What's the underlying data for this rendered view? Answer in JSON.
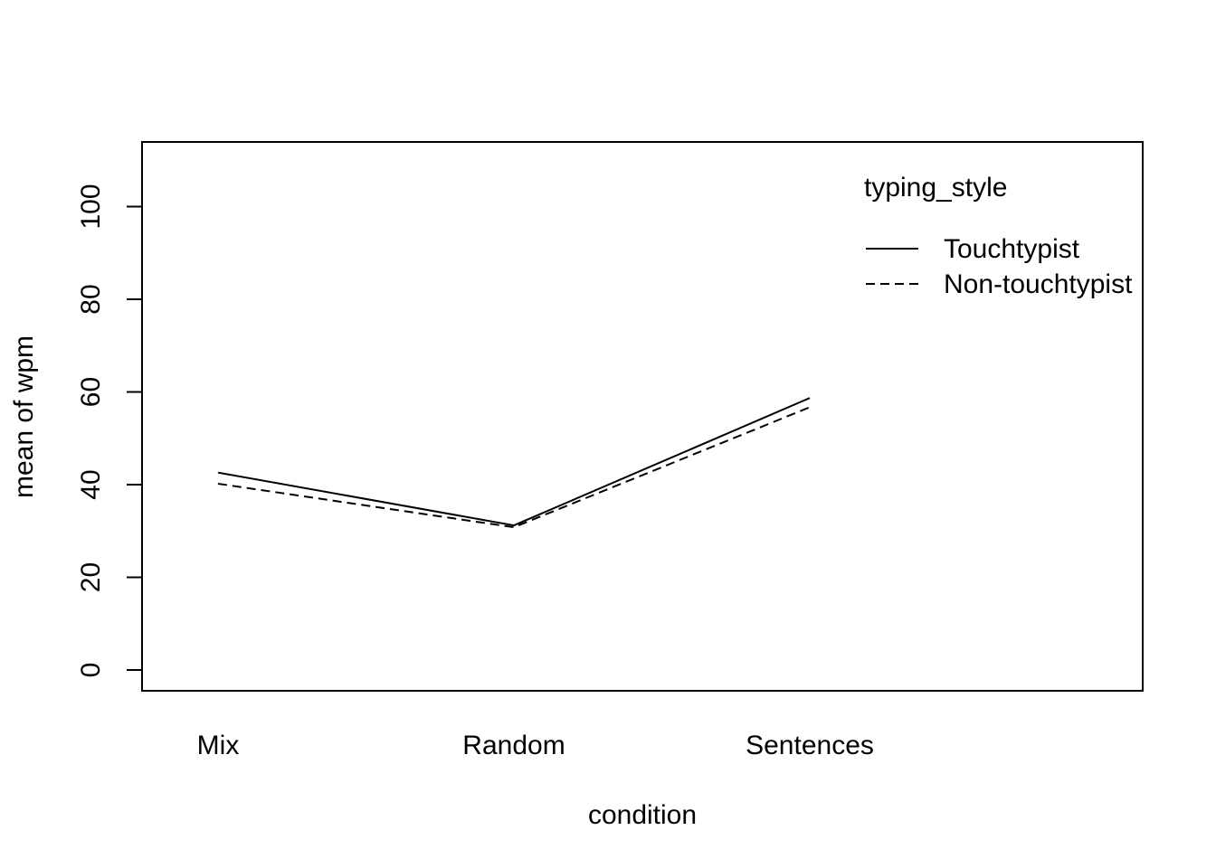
{
  "chart_data": {
    "type": "line",
    "title": "",
    "xlabel": "condition",
    "ylabel": "mean of  wpm",
    "categories": [
      "Mix",
      "Random",
      "Sentences"
    ],
    "ylim": [
      0,
      110
    ],
    "yticks": [
      0,
      20,
      40,
      60,
      80,
      100
    ],
    "grid": false,
    "legend": {
      "title": "typing_style",
      "position": "top-right"
    },
    "series": [
      {
        "name": "Touchtypist",
        "line_style": "solid",
        "values": [
          42.6,
          31.2,
          58.7
        ]
      },
      {
        "name": "Non-touchtypist",
        "line_style": "dashed",
        "values": [
          40.2,
          30.8,
          56.7
        ]
      }
    ],
    "colors": {
      "line": "#000000",
      "background": "#ffffff"
    }
  }
}
